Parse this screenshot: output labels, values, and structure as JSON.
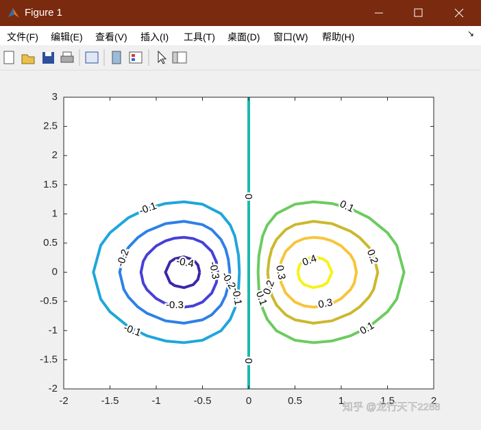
{
  "window": {
    "title": "Figure 1",
    "menu": [
      "文件(F)",
      "编辑(E)",
      "查看(V)",
      "插入(I)",
      "工具(T)",
      "桌面(D)",
      "窗口(W)",
      "帮助(H)"
    ],
    "watermark": "知乎 @龙行天下2288"
  },
  "chart_data": {
    "type": "contour",
    "xlim": [
      -2,
      2
    ],
    "ylim": [
      -2,
      3
    ],
    "xticks": [
      -2,
      -1.5,
      -1,
      -0.5,
      0,
      0.5,
      1,
      1.5,
      2
    ],
    "yticks": [
      -2,
      -1.5,
      -1,
      -0.5,
      0,
      0.5,
      1,
      1.5,
      2,
      2.5,
      3
    ],
    "series": [
      {
        "level": -0.4,
        "color": "#3e26a8",
        "x": [
          -0.53,
          -0.55,
          -0.6,
          -0.7,
          -0.8,
          -0.85,
          -0.9,
          -0.85,
          -0.8,
          -0.7,
          -0.6,
          -0.55,
          -0.53
        ],
        "y": [
          0,
          0.126,
          0.213,
          0.264,
          0.23,
          0.177,
          0,
          -0.177,
          -0.23,
          -0.264,
          -0.213,
          -0.126,
          0
        ]
      },
      {
        "level": -0.3,
        "color": "#4640d8",
        "x": [
          -0.335,
          -0.35,
          -0.4,
          -0.5,
          -0.6,
          -0.7,
          -0.8,
          -0.9,
          -1.0,
          -1.1,
          -1.14,
          -1.165,
          -1.14,
          -1.1,
          -1.0,
          -0.9,
          -0.8,
          -0.7,
          -0.6,
          -0.5,
          -0.4,
          -0.35,
          -0.335
        ],
        "y": [
          0,
          0.178,
          0.357,
          0.511,
          0.577,
          0.598,
          0.584,
          0.537,
          0.451,
          0.299,
          0.188,
          0,
          -0.188,
          -0.299,
          -0.451,
          -0.537,
          -0.584,
          -0.598,
          -0.577,
          -0.511,
          -0.357,
          -0.178,
          0
        ]
      },
      {
        "level": -0.2,
        "color": "#2f80e8",
        "x": [
          -0.205,
          -0.22,
          -0.25,
          -0.3,
          -0.4,
          -0.5,
          -0.7,
          -0.9,
          -1.1,
          -1.2,
          -1.3,
          -1.35,
          -1.395,
          -1.35,
          -1.3,
          -1.2,
          -1.1,
          -0.9,
          -0.7,
          -0.5,
          -0.4,
          -0.3,
          -0.25,
          -0.22,
          -0.205
        ],
        "y": [
          0,
          0.217,
          0.401,
          0.562,
          0.73,
          0.816,
          0.873,
          0.833,
          0.703,
          0.593,
          0.426,
          0.295,
          0,
          -0.295,
          -0.426,
          -0.593,
          -0.703,
          -0.833,
          -0.873,
          -0.816,
          -0.73,
          -0.562,
          -0.401,
          -0.217,
          0
        ]
      },
      {
        "level": -0.1,
        "color": "#1fa6da",
        "x": [
          -0.101,
          -0.11,
          -0.15,
          -0.2,
          -0.3,
          -0.5,
          -0.7,
          -0.9,
          -1.1,
          -1.3,
          -1.5,
          -1.6,
          -1.679,
          -1.6,
          -1.5,
          -1.3,
          -1.1,
          -0.9,
          -0.7,
          -0.5,
          -0.3,
          -0.2,
          -0.15,
          -0.11,
          -0.101
        ],
        "y": [
          0,
          0.288,
          0.619,
          0.808,
          1.004,
          1.166,
          1.207,
          1.178,
          1.09,
          0.935,
          0.677,
          0.461,
          0,
          -0.461,
          -0.677,
          -0.935,
          -1.09,
          -1.178,
          -1.207,
          -1.166,
          -1.004,
          -0.808,
          -0.619,
          -0.288,
          0
        ]
      },
      {
        "level": 0,
        "color": "#1db8ae",
        "x": [
          0,
          0
        ],
        "y": [
          3,
          -2
        ]
      },
      {
        "level": 0.1,
        "color": "#6ccb5f",
        "x": [
          0.101,
          0.11,
          0.15,
          0.2,
          0.3,
          0.5,
          0.7,
          0.9,
          1.1,
          1.3,
          1.5,
          1.6,
          1.679,
          1.6,
          1.5,
          1.3,
          1.1,
          0.9,
          0.7,
          0.5,
          0.3,
          0.2,
          0.15,
          0.11,
          0.101
        ],
        "y": [
          0,
          0.288,
          0.619,
          0.808,
          1.004,
          1.166,
          1.207,
          1.178,
          1.09,
          0.935,
          0.677,
          0.461,
          0,
          -0.461,
          -0.677,
          -0.935,
          -1.09,
          -1.178,
          -1.207,
          -1.166,
          -1.004,
          -0.808,
          -0.619,
          -0.288,
          0
        ]
      },
      {
        "level": 0.2,
        "color": "#cbb82e",
        "x": [
          0.205,
          0.22,
          0.25,
          0.3,
          0.4,
          0.5,
          0.7,
          0.9,
          1.1,
          1.2,
          1.3,
          1.35,
          1.395,
          1.35,
          1.3,
          1.2,
          1.1,
          0.9,
          0.7,
          0.5,
          0.4,
          0.3,
          0.25,
          0.22,
          0.205
        ],
        "y": [
          0,
          0.217,
          0.401,
          0.562,
          0.73,
          0.816,
          0.873,
          0.833,
          0.703,
          0.593,
          0.426,
          0.295,
          0,
          -0.295,
          -0.426,
          -0.593,
          -0.703,
          -0.833,
          -0.873,
          -0.816,
          -0.73,
          -0.562,
          -0.401,
          -0.217,
          0
        ]
      },
      {
        "level": 0.3,
        "color": "#f8c43a",
        "x": [
          0.335,
          0.35,
          0.4,
          0.5,
          0.6,
          0.7,
          0.8,
          0.9,
          1.0,
          1.1,
          1.14,
          1.165,
          1.14,
          1.1,
          1.0,
          0.9,
          0.8,
          0.7,
          0.6,
          0.5,
          0.4,
          0.35,
          0.335
        ],
        "y": [
          0,
          0.178,
          0.357,
          0.511,
          0.577,
          0.598,
          0.584,
          0.537,
          0.451,
          0.299,
          0.188,
          0,
          -0.188,
          -0.299,
          -0.451,
          -0.537,
          -0.584,
          -0.598,
          -0.577,
          -0.511,
          -0.357,
          -0.178,
          0
        ]
      },
      {
        "level": 0.4,
        "color": "#f5f21c",
        "x": [
          0.53,
          0.55,
          0.6,
          0.7,
          0.8,
          0.85,
          0.9,
          0.85,
          0.8,
          0.7,
          0.6,
          0.55,
          0.53
        ],
        "y": [
          0,
          0.126,
          0.213,
          0.264,
          0.23,
          0.177,
          0,
          -0.177,
          -0.23,
          -0.264,
          -0.213,
          -0.126,
          0
        ]
      }
    ]
  }
}
